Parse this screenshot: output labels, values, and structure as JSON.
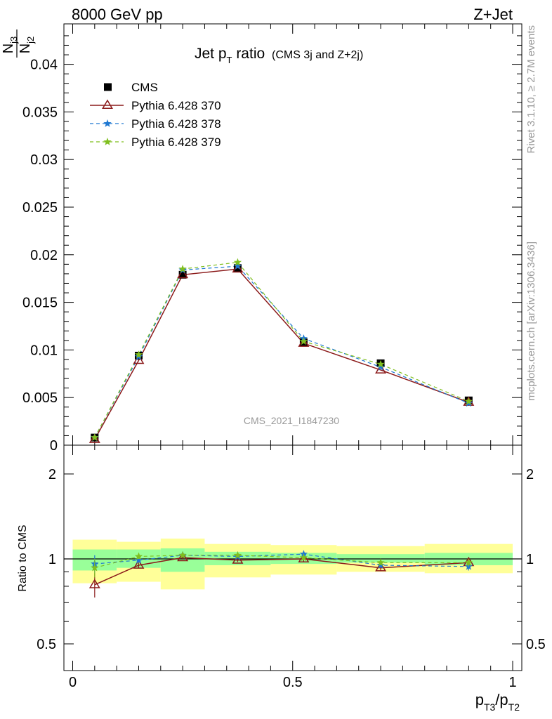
{
  "header": {
    "left": "8000 GeV pp",
    "right": "Z+Jet"
  },
  "plot": {
    "title_main": "Jet p",
    "title_sub": "T",
    "title_rest": " ratio",
    "title_note": "(CMS 3j and Z+2j)",
    "watermark": "CMS_2021_I1847230",
    "y_label_num": "N",
    "y_label_num_sub": "j3",
    "y_label_den": "N",
    "y_label_den_sub": "j2",
    "ratio_ylabel": "Ratio to CMS",
    "x_label_p1": "p",
    "x_label_s1": "T3",
    "x_label_slash": "/p",
    "x_label_s2": "T2"
  },
  "side": {
    "rivet": "Rivet 3.1.10, ≥ 2.7M events",
    "mcplots": "mcplots.cern.ch [arXiv:1306.3436]"
  },
  "colors": {
    "cms": "#000000",
    "p370": "#8b1a1a",
    "p378": "#1f78d1",
    "p379": "#7fbf1f",
    "band_inner": "#99ff99",
    "band_outer": "#ffff99"
  },
  "chart_data": [
    {
      "type": "scatter",
      "panel": "main",
      "x": [
        0.05,
        0.15,
        0.25,
        0.375,
        0.525,
        0.7,
        0.9
      ],
      "x_bins": [
        [
          0.0,
          0.1
        ],
        [
          0.1,
          0.2
        ],
        [
          0.2,
          0.3
        ],
        [
          0.3,
          0.45
        ],
        [
          0.45,
          0.6
        ],
        [
          0.6,
          0.8
        ],
        [
          0.8,
          1.0
        ]
      ],
      "series": [
        {
          "name": "CMS",
          "values": [
            0.0008,
            0.0094,
            0.0179,
            0.0186,
            0.0108,
            0.0086,
            0.0047
          ]
        },
        {
          "name": "Pythia 6.428 370",
          "values": [
            0.0006,
            0.0089,
            0.0179,
            0.0185,
            0.0107,
            0.0079,
            0.0045
          ]
        },
        {
          "name": "Pythia 6.428 378",
          "values": [
            0.0008,
            0.0093,
            0.0184,
            0.0188,
            0.0112,
            0.0082,
            0.0044
          ]
        },
        {
          "name": "Pythia 6.428 379",
          "values": [
            0.0008,
            0.0095,
            0.0185,
            0.0192,
            0.0109,
            0.0085,
            0.0046
          ]
        }
      ],
      "xlim": [
        0,
        1
      ],
      "ylim": [
        0,
        0.044
      ],
      "yticks": [
        0,
        0.005,
        0.01,
        0.015,
        0.02,
        0.025,
        0.03,
        0.035,
        0.04
      ],
      "ytick_labels": [
        "0",
        "0.005",
        "0.01",
        "0.015",
        "0.02",
        "0.025",
        "0.03",
        "0.035",
        "0.04"
      ],
      "legend": "top-left"
    },
    {
      "type": "line",
      "panel": "ratio",
      "x": [
        0.05,
        0.15,
        0.25,
        0.375,
        0.525,
        0.7,
        0.9
      ],
      "series": [
        {
          "name": "Pythia 6.428 370",
          "values": [
            0.81,
            0.95,
            1.01,
            0.99,
            1.0,
            0.93,
            0.97
          ],
          "errors": [
            0.08,
            0.02,
            0.015,
            0.015,
            0.02,
            0.02,
            0.03
          ]
        },
        {
          "name": "Pythia 6.428 378",
          "values": [
            0.96,
            0.99,
            1.03,
            1.02,
            1.04,
            0.95,
            0.94
          ],
          "errors": [
            0.07,
            0.02,
            0.015,
            0.015,
            0.02,
            0.02,
            0.03
          ]
        },
        {
          "name": "Pythia 6.428 379",
          "values": [
            0.93,
            1.02,
            1.03,
            1.03,
            1.01,
            0.97,
            0.97
          ],
          "errors": [
            0.07,
            0.02,
            0.015,
            0.015,
            0.02,
            0.02,
            0.03
          ]
        }
      ],
      "bands_inner": [
        [
          0.91,
          1.08
        ],
        [
          0.93,
          1.08
        ],
        [
          0.9,
          1.09
        ],
        [
          0.95,
          1.06
        ],
        [
          0.96,
          1.05
        ],
        [
          0.97,
          1.04
        ],
        [
          0.95,
          1.05
        ]
      ],
      "bands_outer": [
        [
          0.82,
          1.17
        ],
        [
          0.83,
          1.15
        ],
        [
          0.78,
          1.18
        ],
        [
          0.86,
          1.13
        ],
        [
          0.88,
          1.12
        ],
        [
          0.9,
          1.11
        ],
        [
          0.89,
          1.13
        ]
      ],
      "ylim_log": [
        0.33,
        2.4
      ],
      "yticks": [
        0.5,
        1,
        2
      ],
      "ytick_labels": [
        "0.5",
        "1",
        "2"
      ],
      "xticks": [
        0,
        0.5,
        1
      ],
      "xtick_labels": [
        "0",
        "0.5",
        "1"
      ]
    }
  ]
}
